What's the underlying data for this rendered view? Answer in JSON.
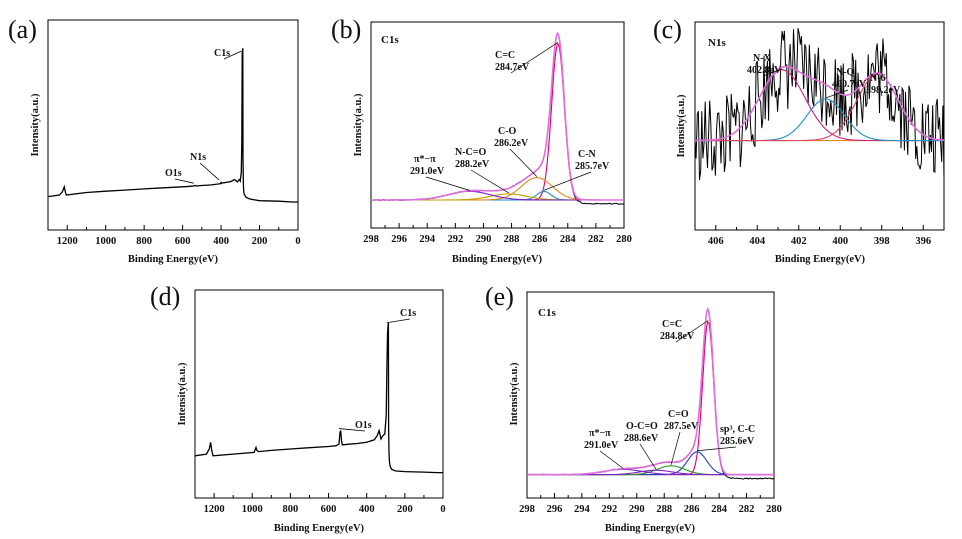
{
  "figure": {
    "panels": [
      {
        "id": "a",
        "label": "(a)"
      },
      {
        "id": "b",
        "label": "(b)"
      },
      {
        "id": "c",
        "label": "(c)"
      },
      {
        "id": "d",
        "label": "(d)"
      },
      {
        "id": "e",
        "label": "(e)"
      }
    ]
  },
  "chart_data": [
    {
      "panel": "(a)",
      "type": "line",
      "title": "",
      "xlabel": "Binding Energy(eV)",
      "ylabel": "Intensity(a.u.)",
      "xlim": [
        1300,
        0
      ],
      "xticks": [
        1200,
        1000,
        800,
        600,
        400,
        200,
        0
      ],
      "ylim": [
        0,
        100
      ],
      "series": [
        {
          "name": "survey",
          "color": "#000000",
          "x": [
            1300,
            1240,
            1225,
            1215,
            1210,
            1205,
            1100,
            1000,
            900,
            800,
            700,
            600,
            550,
            535,
            530,
            500,
            450,
            400,
            402,
            398,
            350,
            330,
            315,
            305,
            300,
            295,
            292,
            290,
            287,
            286,
            284,
            282,
            280,
            270,
            250,
            200,
            100,
            30,
            0
          ],
          "y": [
            7,
            8,
            10,
            13,
            10,
            8,
            9.5,
            10.3,
            11,
            11.7,
            12.4,
            13,
            13.4,
            13.8,
            13.5,
            13.8,
            14.2,
            15,
            16,
            15.2,
            16.2,
            17.5,
            16,
            17.5,
            16.5,
            22,
            40,
            95,
            98,
            30,
            14,
            10,
            8.5,
            6.5,
            5.5,
            4.5,
            4.2,
            3.7,
            3.7
          ]
        }
      ],
      "annotations": [
        {
          "text": "C1s",
          "x": 284,
          "y": 95
        },
        {
          "text": "N1s",
          "x": 400,
          "y": 16
        },
        {
          "text": "O1s",
          "x": 532,
          "y": 14
        }
      ]
    },
    {
      "panel": "(b)",
      "type": "line",
      "title": "C1s",
      "xlabel": "Binding Energy(eV)",
      "ylabel": "Intensity(a.u.)",
      "xlim": [
        298,
        280
      ],
      "xticks": [
        298,
        296,
        294,
        292,
        290,
        288,
        286,
        284,
        282,
        280
      ],
      "ylim": [
        0,
        100
      ],
      "baseline": 7,
      "peaks": [
        {
          "name": "C=C",
          "label1": "C=C",
          "label2": "284.7eV",
          "center": 284.7,
          "height": 98,
          "width": 0.45,
          "color": "#d9006c"
        },
        {
          "name": "C-N",
          "label1": "C-N",
          "label2": "285.7eV",
          "center": 285.7,
          "height": 12,
          "width": 0.5,
          "color": "#1e90c8"
        },
        {
          "name": "C-O",
          "label1": "C-O",
          "label2": "286.2eV",
          "center": 286.2,
          "height": 20,
          "width": 1.1,
          "color": "#e08a20"
        },
        {
          "name": "N-C=O",
          "label1": "N-C=O",
          "label2": "288.2eV",
          "center": 288.2,
          "height": 10.5,
          "width": 1.3,
          "color": "#c0a000"
        },
        {
          "name": "π*−π",
          "label1": "π*−π",
          "label2": "291.0eV",
          "center": 291.0,
          "height": 12,
          "width": 1.5,
          "color": "#8020c0"
        }
      ],
      "fit_color": "#e070e0",
      "baseline_color": "#2a9a2a",
      "raw_color": "#000000"
    },
    {
      "panel": "(c)",
      "type": "line",
      "title": "N1s",
      "xlabel": "Binding Energy(eV)",
      "ylabel": "Intensity(a.u.)",
      "xlim": [
        407,
        395
      ],
      "xticks": [
        406,
        404,
        402,
        400,
        398,
        396
      ],
      "ylim": [
        0,
        100
      ],
      "baseline": 43,
      "peaks": [
        {
          "name": "N-X",
          "label1": "N-X",
          "label2": "402.8eV",
          "center": 402.8,
          "height": 77,
          "width": 1.1,
          "color": "#d02080"
        },
        {
          "name": "N-Q",
          "label1": "N-Q",
          "label2": "400.7eV",
          "center": 400.7,
          "height": 63,
          "width": 0.9,
          "color": "#1e90c8"
        },
        {
          "name": "N-6",
          "label1": "N-6",
          "label2": "398.2eV",
          "center": 398.2,
          "height": 75,
          "width": 1.0,
          "color": "#e04060"
        }
      ],
      "fit_color": "#e070e0",
      "baseline_color": "#e08a20",
      "raw_color": "#000000"
    },
    {
      "panel": "(d)",
      "type": "line",
      "title": "",
      "xlabel": "Binding Energy(eV)",
      "ylabel": "Intensity(a.u.)",
      "xlim": [
        1300,
        0
      ],
      "xticks": [
        1200,
        1000,
        800,
        600,
        400,
        200,
        0
      ],
      "ylim": [
        0,
        100
      ],
      "series": [
        {
          "name": "survey",
          "color": "#000000",
          "x": [
            1300,
            1240,
            1225,
            1218,
            1212,
            1205,
            1100,
            990,
            980,
            975,
            965,
            900,
            800,
            700,
            600,
            560,
            545,
            540,
            536,
            532,
            528,
            525,
            500,
            450,
            400,
            360,
            345,
            335,
            325,
            315,
            305,
            298,
            294,
            291,
            288,
            286,
            285,
            283,
            281,
            278,
            270,
            250,
            200,
            100,
            30,
            0
          ],
          "y": [
            18,
            19,
            22,
            26,
            21,
            18,
            19,
            20,
            23,
            21,
            20.5,
            21.2,
            22,
            22.8,
            23.5,
            24,
            25,
            32,
            33,
            27,
            24.5,
            24.5,
            24.8,
            25.3,
            26,
            27.5,
            30,
            33,
            28,
            30,
            31,
            42,
            70,
            90,
            96,
            97,
            35,
            20,
            15,
            12,
            10,
            9,
            8.6,
            8.3,
            8,
            8
          ]
        }
      ],
      "annotations": [
        {
          "text": "C1s",
          "x": 284,
          "y": 96
        },
        {
          "text": "O1s",
          "x": 535,
          "y": 33
        }
      ]
    },
    {
      "panel": "(e)",
      "type": "line",
      "title": "C1s",
      "xlabel": "Binding Energy(eV)",
      "ylabel": "Intensity(a.u.)",
      "xlim": [
        298,
        280
      ],
      "xticks": [
        298,
        296,
        294,
        292,
        290,
        288,
        286,
        284,
        282,
        280
      ],
      "ylim": [
        0,
        100
      ],
      "baseline": 11,
      "peaks": [
        {
          "name": "C=C",
          "label1": "C=C",
          "label2": "284.8eV",
          "center": 284.8,
          "height": 98,
          "width": 0.4,
          "color": "#d9006c"
        },
        {
          "name": "sp3, C-C",
          "label1": "sp³, C-C",
          "label2": "285.6eV",
          "center": 285.6,
          "height": 24,
          "width": 0.7,
          "color": "#2040c0"
        },
        {
          "name": "C=O",
          "label1": "C=O",
          "label2": "287.5eV",
          "center": 287.5,
          "height": 16,
          "width": 1.0,
          "color": "#2a9a2a"
        },
        {
          "name": "O-C=O",
          "label1": "O-C=O",
          "label2": "288.6eV",
          "center": 288.6,
          "height": 13.5,
          "width": 1.2,
          "color": "#8020c0"
        },
        {
          "name": "π*−π",
          "label1": "π*−π",
          "label2": "291.0eV",
          "center": 291.0,
          "height": 14,
          "width": 1.4,
          "color": "#8020c0"
        }
      ],
      "fit_color": "#e070e0",
      "baseline_color": "#2a9a2a",
      "raw_color": "#000000"
    }
  ]
}
